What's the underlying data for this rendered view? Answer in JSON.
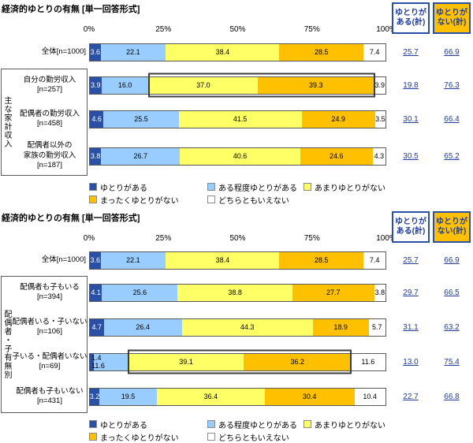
{
  "style": {
    "series_colors": [
      "#2a50a5",
      "#99ccff",
      "#ffff66",
      "#ffc000",
      "#ffffff"
    ],
    "bar_border": "#595959",
    "highlight_border": "#3d3d3d",
    "header_border": "#2a50a5",
    "header_text": "#1f3c9e",
    "header_bg": [
      "#ffffff",
      "#ffc000"
    ],
    "summary_value_color": "#1f3c9e"
  },
  "chart_data": [
    {
      "type": "bar",
      "stacked": true,
      "orientation": "horizontal",
      "title": "経済的ゆとりの有無 [単一回答形式]",
      "x_ticks": [
        "0%",
        "25%",
        "50%",
        "75%",
        "100%"
      ],
      "xlim": [
        0,
        100
      ],
      "legend": [
        "ゆとりがある",
        "ある程度ゆとりがある",
        "あまりゆとりがない",
        "まったくゆとりがない",
        "どちらともいえない"
      ],
      "summary_headers": [
        [
          "ゆとりが",
          "ある(計)"
        ],
        [
          "ゆとりが",
          "ない(計)"
        ]
      ],
      "group_label": "主な家計収入",
      "rows": [
        {
          "category_lines": [
            "全体[n=1000]"
          ],
          "values": [
            3.6,
            22.1,
            38.4,
            28.5,
            7.4
          ],
          "summary": [
            25.7,
            66.9
          ],
          "group": false,
          "highlight": false
        },
        {
          "category_lines": [
            "自分の勤労収入",
            "[n=257]"
          ],
          "values": [
            3.9,
            16.0,
            37.0,
            39.3,
            3.9
          ],
          "summary": [
            19.8,
            76.3
          ],
          "group": true,
          "highlight": true
        },
        {
          "category_lines": [
            "配偶者の勤労収入",
            "[n=458]"
          ],
          "values": [
            4.6,
            25.5,
            41.5,
            24.9,
            3.5
          ],
          "summary": [
            30.1,
            66.4
          ],
          "group": true,
          "highlight": false
        },
        {
          "category_lines": [
            "配偶者以外の",
            "家族の勤労収入",
            "[n=187]"
          ],
          "values": [
            3.8,
            26.7,
            40.6,
            24.6,
            4.3
          ],
          "summary": [
            30.5,
            65.2
          ],
          "group": true,
          "highlight": false
        }
      ]
    },
    {
      "type": "bar",
      "stacked": true,
      "orientation": "horizontal",
      "title": "経済的ゆとりの有無 [単一回答形式]",
      "x_ticks": [
        "0%",
        "25%",
        "50%",
        "75%",
        "100%"
      ],
      "xlim": [
        0,
        100
      ],
      "legend": [
        "ゆとりがある",
        "ある程度ゆとりがある",
        "あまりゆとりがない",
        "まったくゆとりがない",
        "どちらともいえない"
      ],
      "summary_headers": [
        [
          "ゆとりが",
          "ある(計)"
        ],
        [
          "ゆとりが",
          "ない(計)"
        ]
      ],
      "group_label": "配偶者・子有無別",
      "rows": [
        {
          "category_lines": [
            "全体[n=1000]"
          ],
          "values": [
            3.6,
            22.1,
            38.4,
            28.5,
            7.4
          ],
          "summary": [
            25.7,
            66.9
          ],
          "group": false,
          "highlight": false
        },
        {
          "category_lines": [
            "配偶者も子もいる",
            "[n=394]"
          ],
          "values": [
            4.1,
            25.6,
            38.8,
            27.7,
            3.8
          ],
          "summary": [
            29.7,
            66.5
          ],
          "group": true,
          "highlight": false
        },
        {
          "category_lines": [
            "配偶者いる・子いない",
            "[n=106]"
          ],
          "values": [
            4.7,
            26.4,
            44.3,
            18.9,
            5.7
          ],
          "summary": [
            31.1,
            63.2
          ],
          "group": true,
          "highlight": false
        },
        {
          "category_lines": [
            "子いる・配偶者いない",
            "[n=69]"
          ],
          "values": [
            1.4,
            11.6,
            39.1,
            36.2,
            11.6
          ],
          "summary": [
            13.0,
            75.4
          ],
          "group": true,
          "highlight": true
        },
        {
          "category_lines": [
            "配偶者も子もいない",
            "[n=431]"
          ],
          "values": [
            3.2,
            19.5,
            36.4,
            30.4,
            10.4
          ],
          "summary": [
            22.7,
            66.8
          ],
          "group": true,
          "highlight": false
        }
      ]
    }
  ]
}
